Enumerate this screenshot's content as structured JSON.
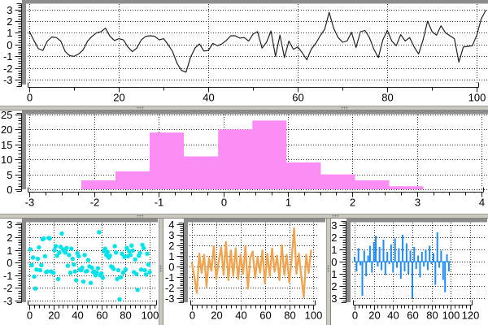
{
  "colors": {
    "line": "#1a1a1a",
    "hist": "#fc8df4",
    "scatter": "#00e3ea",
    "orange": "#f0a450",
    "blue": "#1e8cfa",
    "axis": "#1a1a1a",
    "grid": "#1a1a1a",
    "bevel": "#8c8c8c",
    "sash": "#cbc8c2"
  },
  "chart_data": [
    {
      "id": "signal-line",
      "type": "line",
      "color": "line",
      "xlim": [
        -0.4,
        102.5
      ],
      "ylim": [
        -3.4,
        3.45
      ],
      "xticks": {
        "major": [
          0,
          20,
          40,
          60,
          80,
          100
        ],
        "labels": [
          "0",
          "20",
          "40",
          "60",
          "80",
          "100"
        ],
        "minor_step": 10
      },
      "yticks": {
        "major": [
          3,
          2,
          1,
          0,
          -1,
          -2,
          -3
        ],
        "labels": [
          "3",
          "2",
          "1",
          "0",
          "-1",
          "-2",
          "-3"
        ],
        "minor_step": 0.2
      },
      "x_start": 0,
      "x_step": 1,
      "y": [
        1.1,
        0.35,
        -0.35,
        -0.5,
        0.3,
        0.65,
        0.6,
        0.3,
        -0.6,
        -0.95,
        -1.0,
        -0.8,
        -0.45,
        0.3,
        0.7,
        1.0,
        1.1,
        1.4,
        0.7,
        0.35,
        0.5,
        0.4,
        -0.2,
        -0.6,
        -0.3,
        0.4,
        0.7,
        0.75,
        0.7,
        0.4,
        0.5,
        0.0,
        -0.6,
        -1.6,
        -2.2,
        -2.35,
        -1.1,
        -0.3,
        0.05,
        -0.55,
        -0.5,
        0.1,
        -0.1,
        0.05,
        0.35,
        0.75,
        0.75,
        0.55,
        0.6,
        0.3,
        0.9,
        1.1,
        -0.3,
        0.2,
        1.15,
        -1.0,
        0.8,
        -1.1,
        0.3,
        -0.4,
        -0.2,
        -0.7,
        -1.3,
        -0.4,
        0.1,
        0.75,
        1.3,
        2.75,
        1.4,
        0.6,
        0.2,
        0.3,
        1.05,
        -0.25,
        1.1,
        1.2,
        0.6,
        -0.4,
        -1.1,
        0.4,
        1.2,
        0.3,
        -0.1,
        0.85,
        0.3,
        0.6,
        -0.2,
        -0.8,
        0.4,
        2.0,
        1.1,
        0.8,
        1.6,
        1.0,
        0.75,
        0.5,
        -1.5,
        -0.2,
        -0.15,
        -0.1,
        0.8,
        2.2,
        2.9
      ]
    },
    {
      "id": "histogram",
      "type": "histogram",
      "color": "hist",
      "xlim": [
        -3.03,
        4.1
      ],
      "ylim": [
        0,
        25
      ],
      "xticks": {
        "major": [
          -3,
          -2,
          -1,
          0,
          1,
          2,
          3,
          4
        ],
        "labels": [
          "-3",
          "-2",
          "-1",
          "0",
          "1",
          "2",
          "3",
          "4"
        ],
        "minor_step": 0.25
      },
      "yticks": {
        "major": [
          25,
          20,
          15,
          10,
          5,
          0
        ],
        "labels": [
          "25",
          "20",
          "15",
          "10",
          "5",
          "0"
        ],
        "minor_step": 1
      },
      "bin_edges": [
        -2.2,
        -1.67,
        -1.14,
        -0.61,
        -0.08,
        0.45,
        0.98,
        1.51,
        2.04,
        2.57,
        3.1
      ],
      "counts": [
        3,
        6,
        19,
        11,
        20,
        23,
        9,
        5,
        3,
        1
      ]
    },
    {
      "id": "scatter",
      "type": "scatter",
      "color": "scatter",
      "xlim": [
        -1.4,
        106.1
      ],
      "ylim": [
        -3.13,
        3.16
      ],
      "xticks": {
        "major": [
          0,
          20,
          40,
          60,
          80,
          100
        ],
        "labels": [
          "0",
          "20",
          "40",
          "60",
          "80",
          "100"
        ],
        "minor_step": 4
      },
      "yticks": {
        "major": [
          3,
          2,
          1,
          0,
          -1,
          -2,
          -3
        ],
        "labels": [
          "3",
          "2",
          "1",
          "0",
          "-1",
          "-2",
          "-3"
        ],
        "minor_step": 0.2
      },
      "x_start": 1,
      "x_step": 1,
      "y": [
        1.05,
        -0.2,
        0.4,
        -1.1,
        -2.05,
        -0.55,
        0.3,
        1.2,
        -0.6,
        -0.2,
        1.85,
        1.9,
        0.5,
        -0.75,
        -0.7,
        1.95,
        1.9,
        -0.7,
        -0.75,
        -0.8,
        1.0,
        1.3,
        0.55,
        -1.3,
        0.8,
        1.25,
        2.3,
        1.05,
        0.9,
        0.8,
        1.15,
        -0.25,
        0.6,
        -0.8,
        1.1,
        0.3,
        -0.15,
        -0.7,
        -1.4,
        0.75,
        0.5,
        -0.55,
        -0.6,
        -0.4,
        -1.5,
        0.6,
        -0.7,
        -0.65,
        0.2,
        -0.3,
        -1.6,
        -0.4,
        -0.75,
        -0.7,
        -1.0,
        -0.8,
        -0.45,
        2.4,
        -1.0,
        -0.85,
        -1.2,
        0.9,
        1.1,
        0.6,
        0.85,
        0.4,
        0.55,
        -0.3,
        -0.35,
        -0.5,
        1.3,
        0.8,
        -1.3,
        -0.6,
        -2.9,
        -1.15,
        0.7,
        -0.8,
        0.45,
        -0.55,
        1.15,
        0.5,
        0.9,
        0.6,
        1.35,
        0.95,
        -0.75,
        0.25,
        -0.9,
        -2.15,
        0.55,
        0.75,
        -0.55,
        1.4,
        1.15,
        -0.6,
        -0.95,
        0.7,
        -0.15,
        -0.75
      ]
    },
    {
      "id": "orange-line",
      "type": "line",
      "color": "orange",
      "xlim": [
        -2.0,
        103.7
      ],
      "ylim": [
        -3.38,
        4.12
      ],
      "xticks": {
        "major": [
          0,
          20,
          40,
          60,
          80,
          100
        ],
        "labels": [
          "0",
          "20",
          "40",
          "60",
          "80",
          "100"
        ],
        "minor_step": 4
      },
      "yticks": {
        "major": [
          4,
          3,
          2,
          1,
          0,
          -1,
          -2,
          -3
        ],
        "labels": [
          "4",
          "3",
          "2",
          "1",
          "0",
          "-1",
          "-2",
          "-3"
        ],
        "minor_step": 0.2
      },
      "x_start": 0,
      "x_step": 2,
      "y": [
        0.3,
        -1.0,
        -2.5,
        1.2,
        -0.6,
        1.1,
        -1.9,
        0.8,
        -0.4,
        1.9,
        -1.2,
        0.5,
        1.8,
        -0.8,
        2.3,
        -1.3,
        1.5,
        -0.9,
        1.7,
        -1.2,
        1.1,
        -0.7,
        1.9,
        -2.1,
        0.8,
        1.4,
        -1.1,
        0.9,
        -0.6,
        1.5,
        -1.6,
        1.2,
        -0.9,
        1.7,
        -0.5,
        1.0,
        -1.3,
        2.0,
        -0.8,
        1.1,
        -1.5,
        0.7,
        3.6,
        -0.7,
        1.2,
        -1.0,
        -2.9,
        1.1,
        -0.6,
        1.5
      ]
    },
    {
      "id": "impulses",
      "type": "impulses",
      "color": "blue",
      "xlim": [
        -2.54,
        135.3
      ],
      "ylim": [
        -3.33,
        3.2
      ],
      "zero_axis": [
        0,
        100
      ],
      "xticks": {
        "major": [
          0,
          20,
          40,
          60,
          80,
          100,
          120
        ],
        "labels": [
          "0",
          "20",
          "40",
          "60",
          "80",
          "100",
          "120"
        ],
        "minor_step": 4,
        "tick_max": 120
      },
      "yticks": {
        "major": [
          3,
          2,
          1,
          0,
          -1,
          -2,
          -3
        ],
        "labels": [
          "3",
          "2",
          "1",
          "0",
          "-1",
          "-2",
          "-3"
        ],
        "minor_step": 0.2
      },
      "x_start": 0,
      "x_step": 2,
      "y": [
        0.4,
        -0.8,
        1.1,
        -0.3,
        -2.8,
        0.9,
        -1.2,
        0.5,
        1.3,
        -0.9,
        1.6,
        2.1,
        -0.4,
        1.2,
        -0.7,
        1.8,
        -1.1,
        0.8,
        -0.2,
        1.4,
        -0.9,
        1.9,
        -0.5,
        1.1,
        -1.4,
        2.2,
        -0.8,
        1.5,
        -1.0,
        0.9,
        -3.0,
        1.2,
        -0.6,
        0.5,
        -1.3,
        0.8,
        -0.4,
        1.0,
        -0.7,
        1.3,
        -0.2,
        0.7,
        -1.9,
        2.4,
        -0.5,
        0.9,
        -1.5,
        -2.5,
        0.6,
        -0.8
      ]
    }
  ]
}
